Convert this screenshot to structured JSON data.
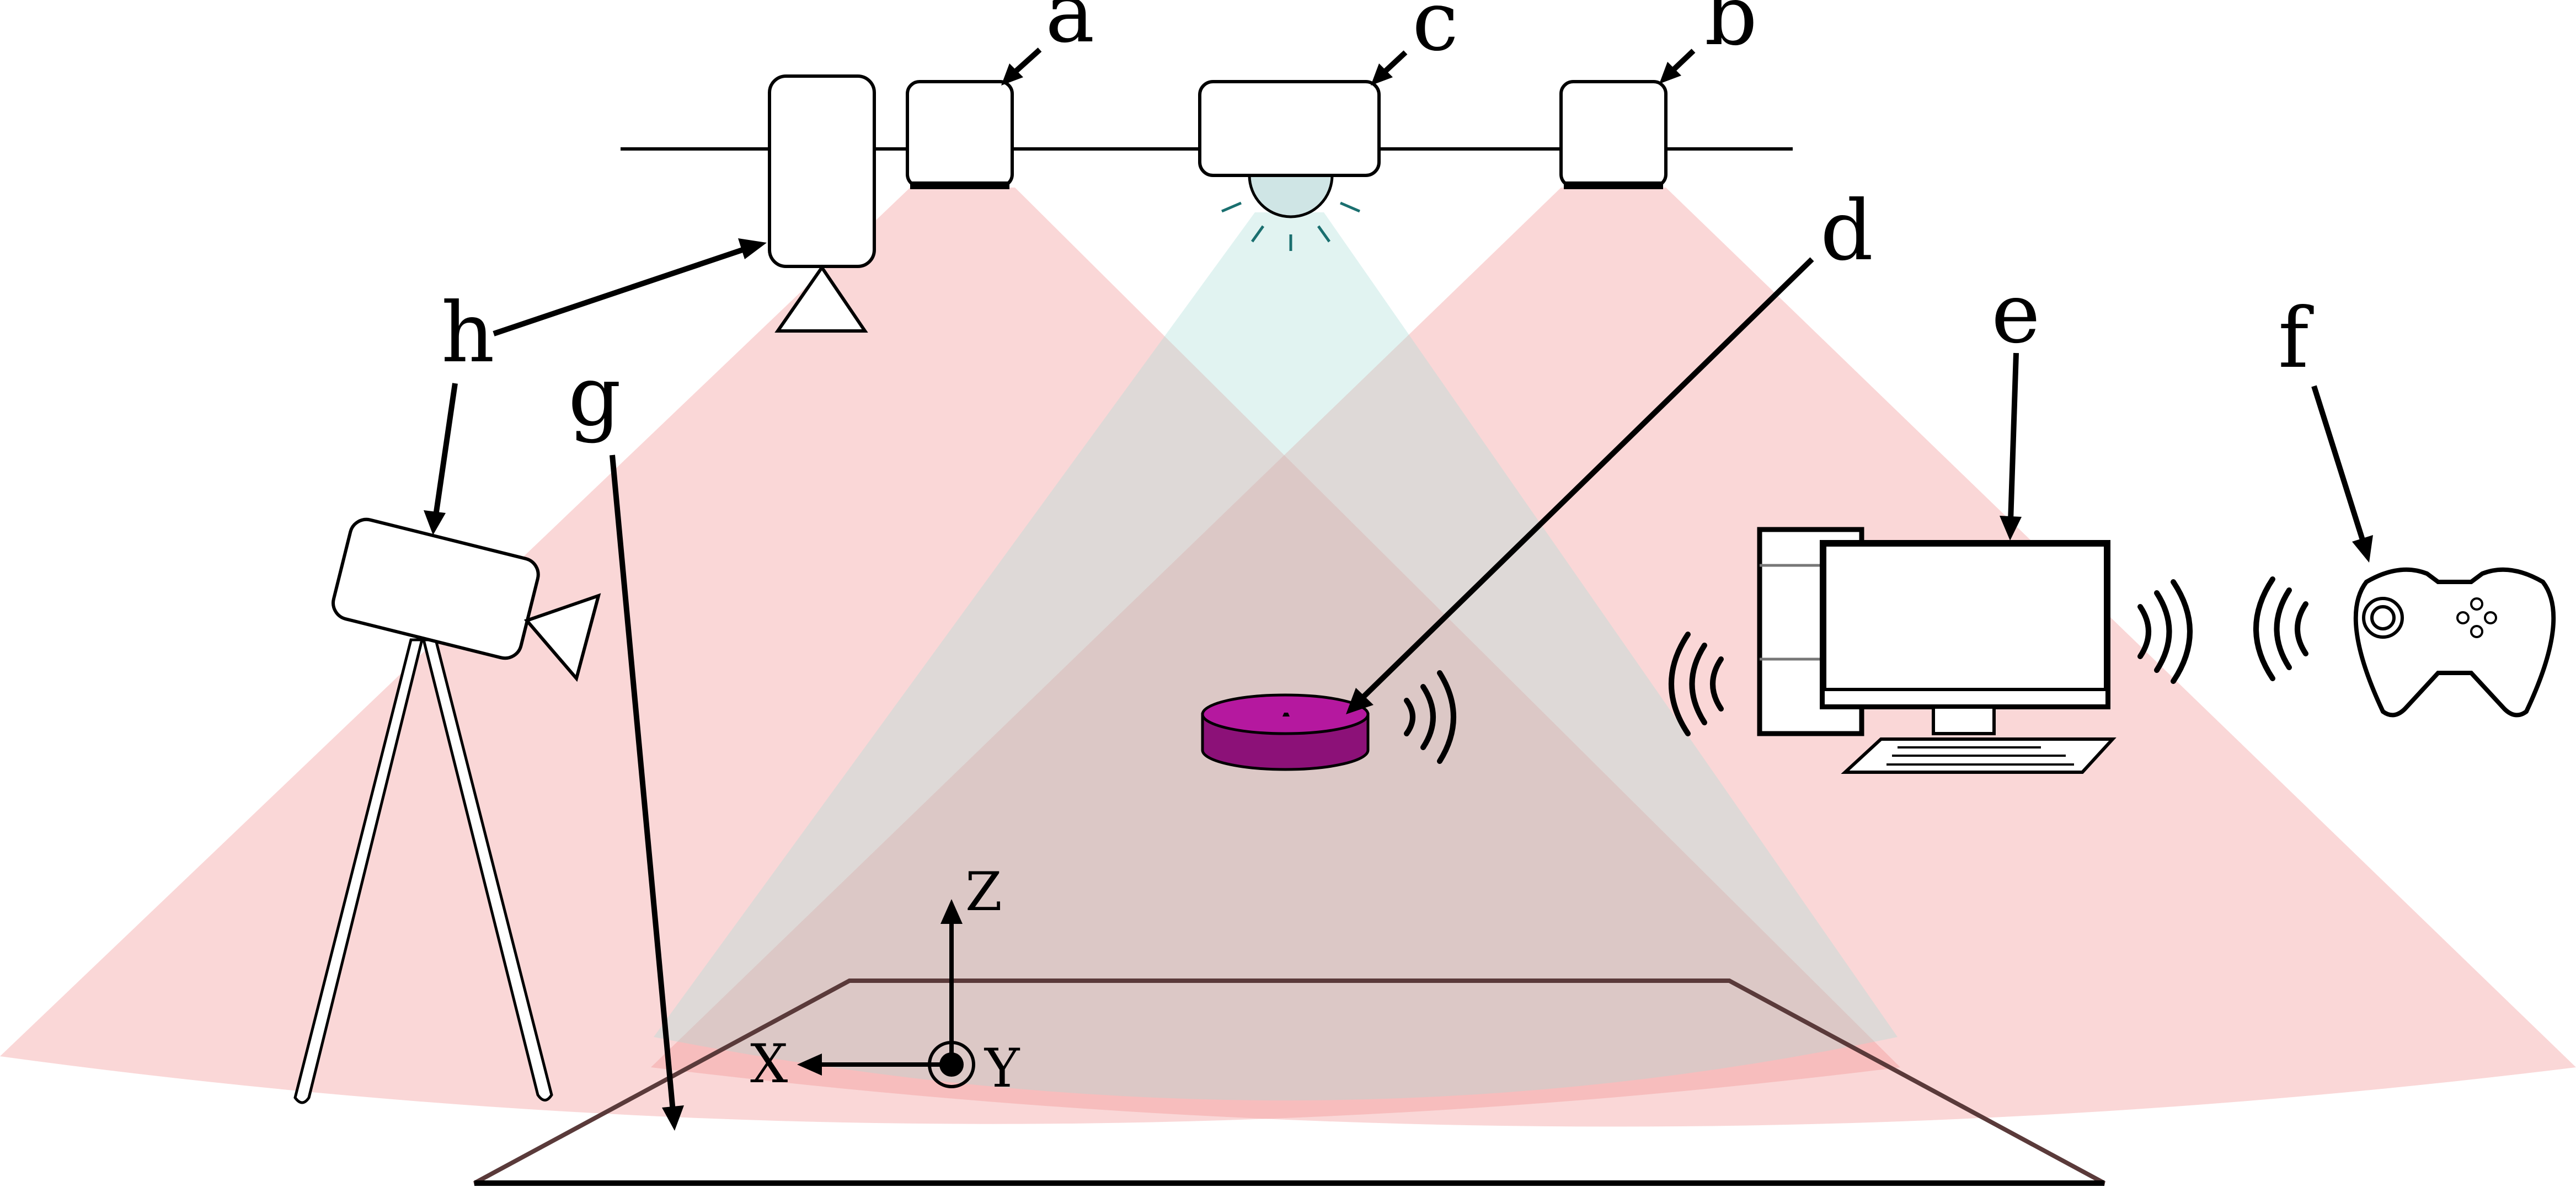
{
  "labels": {
    "a": "a",
    "b": "b",
    "c": "c",
    "d": "d",
    "e": "e",
    "f": "f",
    "g": "g",
    "h": "h"
  },
  "axes": {
    "x": "X",
    "y": "Y",
    "z": "Z"
  },
  "colors": {
    "camera_cone": "#f08c8c",
    "light_cone": "#a9dcd8",
    "robot": "#b5189f",
    "floor_outline": "#5a3a3a"
  }
}
